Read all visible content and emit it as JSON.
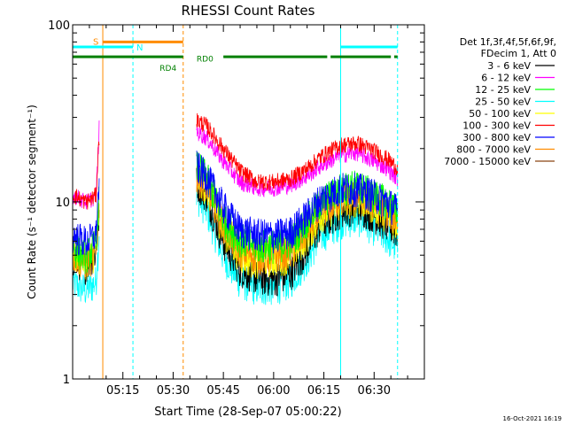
{
  "chart_data": {
    "type": "line",
    "title": "RHESSI Count Rates",
    "xlabel": "Start Time (28-Sep-07 05:00:22)",
    "ylabel": "Count Rate (s⁻¹ detector segment⁻¹)",
    "yscale": "log",
    "ylim": [
      1,
      100
    ],
    "xlim_minutes": [
      0,
      105
    ],
    "x_ticks": [
      {
        "label": "05:15",
        "minute": 15
      },
      {
        "label": "05:30",
        "minute": 30
      },
      {
        "label": "05:45",
        "minute": 45
      },
      {
        "label": "06:00",
        "minute": 60
      },
      {
        "label": "06:15",
        "minute": 75
      },
      {
        "label": "06:30",
        "minute": 90
      }
    ],
    "y_ticks": [
      {
        "label": "1",
        "value": 1
      },
      {
        "label": "10",
        "value": 10
      },
      {
        "label": "100",
        "value": 100
      }
    ],
    "timestamp": "16-Oct-2021 16:19",
    "legend": {
      "placement": "right",
      "header_lines": [
        "Det 1f,3f,4f,5f,6f,9f,",
        "FDecim 1, Att 0"
      ],
      "entries": [
        {
          "label": "3 - 6 keV",
          "color": "#000000"
        },
        {
          "label": "6 - 12 keV",
          "color": "#ff00ff"
        },
        {
          "label": "12 - 25 keV",
          "color": "#00ff00"
        },
        {
          "label": "25 - 50 keV",
          "color": "#00ffff"
        },
        {
          "label": "50 - 100 keV",
          "color": "#ffff00"
        },
        {
          "label": "100 - 300 keV",
          "color": "#ff0000"
        },
        {
          "label": "300 - 800 keV",
          "color": "#0000ff"
        },
        {
          "label": "800 - 7000 keV",
          "color": "#ff8c00"
        },
        {
          "label": "7000 - 15000 keV",
          "color": "#8b4513"
        }
      ]
    },
    "series": [
      {
        "name": "3 - 6 keV",
        "color": "#000000",
        "seg1": [
          [
            0,
            4.8
          ],
          [
            4,
            4.4
          ],
          [
            6,
            5.0
          ],
          [
            7,
            5.2
          ],
          [
            8,
            9
          ]
        ],
        "seg2": [
          [
            37,
            13
          ],
          [
            40,
            11
          ],
          [
            45,
            6
          ],
          [
            50,
            4.2
          ],
          [
            55,
            3.8
          ],
          [
            60,
            3.7
          ],
          [
            65,
            4.0
          ],
          [
            70,
            5.5
          ],
          [
            74,
            7.5
          ],
          [
            80,
            9.0
          ],
          [
            85,
            9.5
          ],
          [
            90,
            8.5
          ],
          [
            94,
            7.5
          ],
          [
            97,
            6.8
          ]
        ]
      },
      {
        "name": "6 - 12 keV",
        "color": "#ff00ff",
        "seg1": [
          [
            0,
            11
          ],
          [
            4,
            10
          ],
          [
            6,
            10.5
          ],
          [
            7,
            11
          ],
          [
            8,
            28
          ]
        ],
        "seg2": [
          [
            37,
            25
          ],
          [
            40,
            23
          ],
          [
            45,
            17
          ],
          [
            50,
            13
          ],
          [
            55,
            12
          ],
          [
            60,
            12
          ],
          [
            65,
            12.5
          ],
          [
            70,
            14
          ],
          [
            74,
            16
          ],
          [
            80,
            18.5
          ],
          [
            85,
            19
          ],
          [
            90,
            17
          ],
          [
            94,
            15.5
          ],
          [
            97,
            13.5
          ]
        ]
      },
      {
        "name": "12 - 25 keV",
        "color": "#00ff00",
        "seg1": [
          [
            0,
            5.5
          ],
          [
            4,
            5.0
          ],
          [
            6,
            5.5
          ],
          [
            7,
            6
          ],
          [
            8,
            12
          ]
        ],
        "seg2": [
          [
            37,
            16
          ],
          [
            40,
            14
          ],
          [
            45,
            8
          ],
          [
            50,
            6.2
          ],
          [
            55,
            5.7
          ],
          [
            60,
            5.7
          ],
          [
            65,
            6.0
          ],
          [
            70,
            8
          ],
          [
            74,
            10
          ],
          [
            80,
            12
          ],
          [
            85,
            12.5
          ],
          [
            90,
            11
          ],
          [
            94,
            10
          ],
          [
            97,
            9
          ]
        ]
      },
      {
        "name": "25 - 50 keV",
        "color": "#00ffff",
        "seg1": [
          [
            0,
            3.5
          ],
          [
            4,
            3.2
          ],
          [
            6,
            3.4
          ],
          [
            7,
            3.6
          ],
          [
            8,
            7
          ]
        ],
        "seg2": [
          [
            37,
            11
          ],
          [
            40,
            9
          ],
          [
            45,
            5
          ],
          [
            50,
            3.6
          ],
          [
            55,
            3.3
          ],
          [
            60,
            3.3
          ],
          [
            65,
            3.6
          ],
          [
            70,
            4.8
          ],
          [
            74,
            6.5
          ],
          [
            80,
            7.8
          ],
          [
            85,
            8.2
          ],
          [
            90,
            7.2
          ],
          [
            94,
            6.3
          ],
          [
            97,
            5.5
          ]
        ]
      },
      {
        "name": "50 - 100 keV",
        "color": "#ffff00",
        "seg1": [
          [
            0,
            5.0
          ],
          [
            4,
            4.7
          ],
          [
            6,
            5.0
          ],
          [
            7,
            5.3
          ],
          [
            8,
            9
          ]
        ],
        "seg2": [
          [
            37,
            14
          ],
          [
            40,
            12
          ],
          [
            45,
            7
          ],
          [
            50,
            5.0
          ],
          [
            55,
            4.7
          ],
          [
            60,
            4.8
          ],
          [
            65,
            5.0
          ],
          [
            70,
            6.5
          ],
          [
            74,
            8.5
          ],
          [
            80,
            10
          ],
          [
            85,
            10.5
          ],
          [
            90,
            9.5
          ],
          [
            94,
            8.5
          ],
          [
            97,
            7.5
          ]
        ]
      },
      {
        "name": "100 - 300 keV",
        "color": "#ff0000",
        "seg1": [
          [
            0,
            11
          ],
          [
            4,
            10
          ],
          [
            6,
            10.5
          ],
          [
            7,
            11
          ],
          [
            8,
            25
          ]
        ],
        "seg2": [
          [
            37,
            29
          ],
          [
            40,
            27
          ],
          [
            45,
            20
          ],
          [
            50,
            15
          ],
          [
            55,
            13
          ],
          [
            60,
            13
          ],
          [
            65,
            13.5
          ],
          [
            70,
            15.5
          ],
          [
            74,
            18
          ],
          [
            80,
            21
          ],
          [
            85,
            21.5
          ],
          [
            90,
            19.5
          ],
          [
            94,
            17.5
          ],
          [
            97,
            15.5
          ]
        ]
      },
      {
        "name": "300 - 800 keV",
        "color": "#0000ff",
        "seg1": [
          [
            0,
            6.5
          ],
          [
            4,
            6.0
          ],
          [
            6,
            6.3
          ],
          [
            7,
            6.6
          ],
          [
            8,
            14
          ]
        ],
        "seg2": [
          [
            37,
            16
          ],
          [
            40,
            14
          ],
          [
            45,
            9.5
          ],
          [
            50,
            7.0
          ],
          [
            55,
            6.6
          ],
          [
            60,
            6.5
          ],
          [
            65,
            6.8
          ],
          [
            70,
            8.5
          ],
          [
            74,
            10.5
          ],
          [
            80,
            12
          ],
          [
            85,
            12
          ],
          [
            90,
            11
          ],
          [
            94,
            10
          ],
          [
            97,
            9
          ]
        ]
      },
      {
        "name": "800 - 7000 keV",
        "color": "#ff8c00",
        "seg1": [
          [
            0,
            5.0
          ],
          [
            4,
            4.6
          ],
          [
            6,
            4.9
          ],
          [
            7,
            5.2
          ],
          [
            8,
            10
          ]
        ],
        "seg2": [
          [
            37,
            14
          ],
          [
            40,
            12.5
          ],
          [
            45,
            7.5
          ],
          [
            50,
            5.4
          ],
          [
            55,
            5.0
          ],
          [
            60,
            5.0
          ],
          [
            65,
            5.3
          ],
          [
            70,
            7
          ],
          [
            74,
            9
          ],
          [
            80,
            10.5
          ],
          [
            85,
            11
          ],
          [
            90,
            10
          ],
          [
            94,
            9
          ],
          [
            97,
            8
          ]
        ]
      }
    ],
    "annotations": {
      "attenuator_bar": {
        "label": "S",
        "color": "#ff8c00",
        "start_min": 9,
        "end_min": 33,
        "value": 80
      },
      "night_bars": {
        "label": "N",
        "color": "#00ffff",
        "value": 75,
        "segments": [
          [
            0,
            18
          ],
          [
            80,
            97
          ]
        ]
      },
      "rd_bars": {
        "color": "#008000",
        "value": 66,
        "segments": [
          [
            0,
            33
          ],
          [
            45,
            76
          ],
          [
            77,
            95
          ],
          [
            96,
            97
          ]
        ]
      },
      "rd_labels": [
        {
          "label": "RD0",
          "minute": 37,
          "value": 62
        },
        {
          "label": "RD4",
          "minute": 26,
          "value": 55
        }
      ],
      "orange_solid_vline": 9,
      "orange_dashed_vline": 33,
      "cyan_dashed_vlines": [
        18,
        97
      ],
      "cyan_solid_vline": 80
    }
  }
}
